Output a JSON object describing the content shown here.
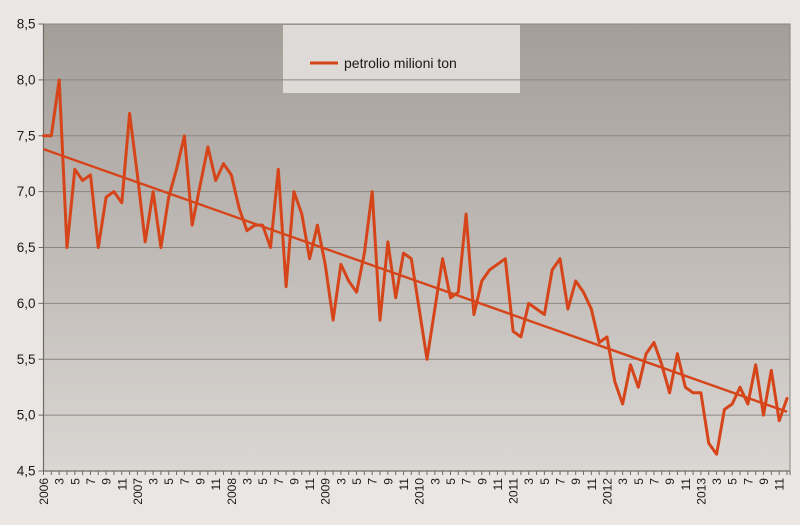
{
  "chart_data": {
    "type": "line",
    "title": "",
    "legend_label": "petrolio milioni ton",
    "x_axis": {
      "years": [
        "2006",
        "2007",
        "2008",
        "2009",
        "2010",
        "2011",
        "2012",
        "2013"
      ],
      "month_tick_labels": [
        "3",
        "5",
        "7",
        "9",
        "11"
      ],
      "months_per_year": 12,
      "label_rotation_deg": -90
    },
    "y_axis": {
      "min": 4.5,
      "max": 8.5,
      "step": 0.5,
      "tick_labels": [
        "8,5",
        "8,0",
        "7,5",
        "7,0",
        "6,5",
        "6,0",
        "5,5",
        "5,0",
        "4,5"
      ],
      "decimal_separator": ","
    },
    "series": [
      {
        "name": "petrolio milioni ton",
        "unit": "milioni ton",
        "values_by_year": {
          "2006": [
            7.5,
            7.5,
            8.0,
            6.5,
            7.2,
            7.1,
            7.15,
            6.5,
            6.95,
            7.0,
            6.9,
            7.7
          ],
          "2007": [
            7.15,
            6.55,
            7.0,
            6.5,
            6.95,
            7.2,
            7.5,
            6.7,
            7.05,
            7.4,
            7.1,
            7.25
          ],
          "2008": [
            7.15,
            6.85,
            6.65,
            6.7,
            6.7,
            6.5,
            7.2,
            6.15,
            7.0,
            6.8,
            6.4,
            6.7
          ],
          "2009": [
            6.35,
            5.85,
            6.35,
            6.2,
            6.1,
            6.45,
            7.0,
            5.85,
            6.55,
            6.05,
            6.45,
            6.4
          ],
          "2010": [
            5.95,
            5.5,
            5.95,
            6.4,
            6.05,
            6.1,
            6.8,
            5.9,
            6.2,
            6.3,
            6.35,
            6.4
          ],
          "2011": [
            5.75,
            5.7,
            6.0,
            5.95,
            5.9,
            6.3,
            6.4,
            5.95,
            6.2,
            6.1,
            5.95,
            5.65
          ],
          "2012": [
            5.7,
            5.3,
            5.1,
            5.45,
            5.25,
            5.55,
            5.65,
            5.45,
            5.2,
            5.55,
            5.25,
            5.2
          ],
          "2013": [
            5.2,
            4.75,
            4.65,
            5.05,
            5.1,
            5.25,
            5.1,
            5.45,
            5.0,
            5.4,
            4.95,
            5.15
          ]
        }
      }
    ],
    "trend_line": {
      "start_value": 7.38,
      "end_value": 5.03
    },
    "colors": {
      "line": "#d6451a",
      "trend": "#d6451a",
      "plot_top": "#a49e99",
      "plot_bottom": "#dad6d3",
      "gridline": "#8c8681",
      "axis": "#6f6a66",
      "background": "#e9e6e3",
      "legend_background": "#dddad7",
      "text": "#1a1a1a"
    },
    "layout_hints": {
      "legend_position": "top-center-inside",
      "grid": "horizontal-only",
      "plot_background": "vertical-gradient-dark-to-light"
    }
  }
}
